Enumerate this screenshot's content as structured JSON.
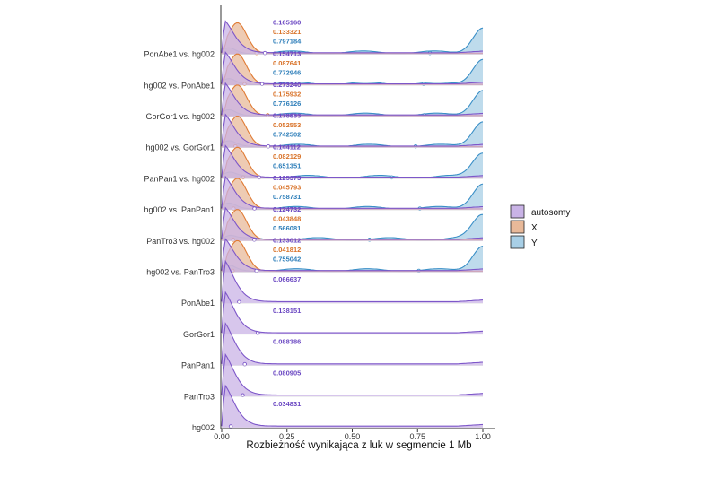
{
  "chart_data": {
    "type": "ridgeline-density",
    "xlabel": "Rozbieżność wynikająca z luk w segmencie 1 Mb",
    "xlim": [
      0,
      1
    ],
    "xticks": [
      "0.00",
      "0.25",
      "0.50",
      "0.75",
      "1.00"
    ],
    "legend": {
      "placement": "right",
      "items": [
        {
          "key": "autosomy",
          "label": "autosomy",
          "fill": "#c9b3e6",
          "line": "#7d57c9"
        },
        {
          "key": "X",
          "label": "X",
          "fill": "#e8b999",
          "line": "#e07b34"
        },
        {
          "key": "Y",
          "label": "Y",
          "fill": "#a8cfe6",
          "line": "#3a8fc7"
        }
      ]
    },
    "colors": {
      "autosomy_text": "#6a47c2",
      "X_text": "#d9742b",
      "Y_text": "#2f7fba"
    },
    "rows": [
      {
        "label": "hg002",
        "series": {
          "autosomy": {
            "mean": 0.034831
          }
        }
      },
      {
        "label": "PanTro3",
        "series": {
          "autosomy": {
            "mean": 0.080905
          }
        }
      },
      {
        "label": "PanPan1",
        "series": {
          "autosomy": {
            "mean": 0.088386
          }
        }
      },
      {
        "label": "GorGor1",
        "series": {
          "autosomy": {
            "mean": 0.138151
          }
        }
      },
      {
        "label": "PonAbe1",
        "series": {
          "autosomy": {
            "mean": 0.066637
          }
        }
      },
      {
        "label": "hg002 vs. PanTro3",
        "series": {
          "autosomy": {
            "mean": 0.133012
          },
          "X": {
            "mean": 0.041812
          },
          "Y": {
            "mean": 0.755042
          }
        }
      },
      {
        "label": "PanTro3 vs. hg002",
        "series": {
          "autosomy": {
            "mean": 0.124732
          },
          "X": {
            "mean": 0.043848
          },
          "Y": {
            "mean": 0.566081
          }
        }
      },
      {
        "label": "hg002 vs. PanPan1",
        "series": {
          "autosomy": {
            "mean": 0.125373
          },
          "X": {
            "mean": 0.045793
          },
          "Y": {
            "mean": 0.758731
          }
        }
      },
      {
        "label": "PanPan1 vs. hg002",
        "series": {
          "autosomy": {
            "mean": 0.144112
          },
          "X": {
            "mean": 0.082129
          },
          "Y": {
            "mean": 0.651351
          }
        }
      },
      {
        "label": "hg002 vs. GorGor1",
        "series": {
          "autosomy": {
            "mean": 0.178833
          },
          "X": {
            "mean": 0.052553
          },
          "Y": {
            "mean": 0.742502
          }
        }
      },
      {
        "label": "GorGor1 vs. hg002",
        "series": {
          "autosomy": {
            "mean": 0.27324
          },
          "X": {
            "mean": 0.175932
          },
          "Y": {
            "mean": 0.776126
          }
        }
      },
      {
        "label": "hg002 vs. PonAbe1",
        "series": {
          "autosomy": {
            "mean": 0.154713
          },
          "X": {
            "mean": 0.087641
          },
          "Y": {
            "mean": 0.772946
          }
        }
      },
      {
        "label": "PonAbe1 vs. hg002",
        "series": {
          "autosomy": {
            "mean": 0.16516
          },
          "X": {
            "mean": 0.133321
          },
          "Y": {
            "mean": 0.797184
          }
        }
      }
    ],
    "annotations": [
      {
        "row": "hg002",
        "series": "autosomy",
        "text": "0.034831"
      },
      {
        "row": "PanTro3",
        "series": "autosomy",
        "text": "0.080905"
      },
      {
        "row": "PanPan1",
        "series": "autosomy",
        "text": "0.088386"
      },
      {
        "row": "GorGor1",
        "series": "autosomy",
        "text": "0.138151"
      },
      {
        "row": "PonAbe1",
        "series": "autosomy",
        "text": "0.066637"
      },
      {
        "row": "hg002 vs. PanTro3",
        "series": "Y",
        "text": "0.755042"
      },
      {
        "row": "hg002 vs. PanTro3",
        "series": "X",
        "text": "0.041812"
      },
      {
        "row": "hg002 vs. PanTro3",
        "series": "autosomy",
        "text": "0.133012"
      },
      {
        "row": "PanTro3 vs. hg002",
        "series": "Y",
        "text": "0.566081"
      },
      {
        "row": "PanTro3 vs. hg002",
        "series": "X",
        "text": "0.043848"
      },
      {
        "row": "PanTro3 vs. hg002",
        "series": "autosomy",
        "text": "0.124732"
      },
      {
        "row": "hg002 vs. PanPan1",
        "series": "Y",
        "text": "0.758731"
      },
      {
        "row": "hg002 vs. PanPan1",
        "series": "X",
        "text": "0.045793"
      },
      {
        "row": "hg002 vs. PanPan1",
        "series": "autosomy",
        "text": "0.125373"
      },
      {
        "row": "PanPan1 vs. hg002",
        "series": "Y",
        "text": "0.651351"
      },
      {
        "row": "PanPan1 vs. hg002",
        "series": "X",
        "text": "0.082129"
      },
      {
        "row": "PanPan1 vs. hg002",
        "series": "autosomy",
        "text": "0.144112"
      },
      {
        "row": "hg002 vs. GorGor1",
        "series": "Y",
        "text": "0.742502"
      },
      {
        "row": "hg002 vs. GorGor1",
        "series": "X",
        "text": "0.052553"
      },
      {
        "row": "hg002 vs. GorGor1",
        "series": "autosomy",
        "text": "0.178833"
      },
      {
        "row": "GorGor1 vs. hg002",
        "series": "Y",
        "text": "0.776126"
      },
      {
        "row": "GorGor1 vs. hg002",
        "series": "X",
        "text": "0.175932"
      },
      {
        "row": "GorGor1 vs. hg002",
        "series": "autosomy",
        "text": "0.273240"
      },
      {
        "row": "hg002 vs. PonAbe1",
        "series": "Y",
        "text": "0.772946"
      },
      {
        "row": "hg002 vs. PonAbe1",
        "series": "X",
        "text": "0.087641"
      },
      {
        "row": "hg002 vs. PonAbe1",
        "series": "autosomy",
        "text": "0.154713"
      },
      {
        "row": "PonAbe1 vs. hg002",
        "series": "Y",
        "text": "0.797184"
      },
      {
        "row": "PonAbe1 vs. hg002",
        "series": "X",
        "text": "0.133321"
      },
      {
        "row": "PonAbe1 vs. hg002",
        "series": "autosomy",
        "text": "0.165160"
      }
    ]
  }
}
